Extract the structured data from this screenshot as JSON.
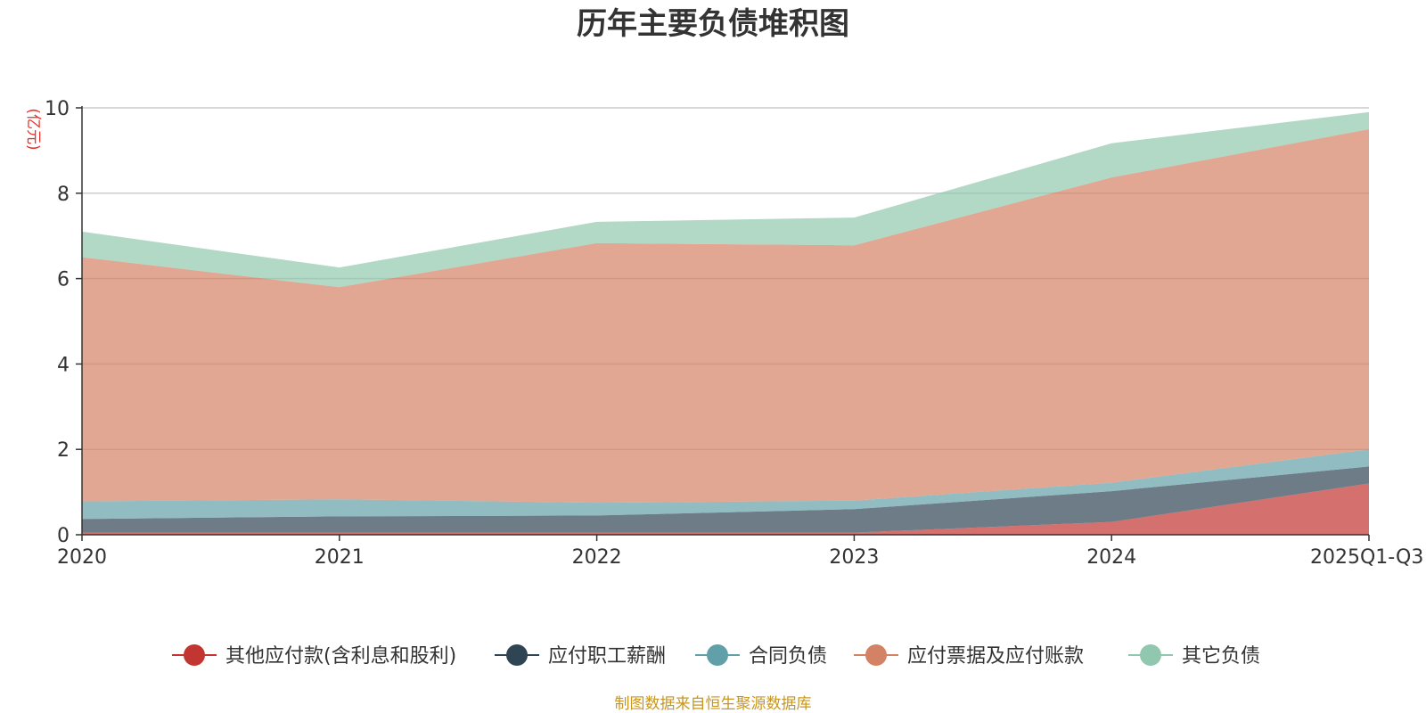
{
  "chart_data": {
    "type": "area",
    "stacked": true,
    "title": "历年主要负债堆积图",
    "unit_label": "(亿元)",
    "categories": [
      "2020",
      "2021",
      "2022",
      "2023",
      "2024",
      "2025Q1-Q3"
    ],
    "ylim": [
      0,
      10
    ],
    "yticks": [
      0,
      2,
      4,
      6,
      8,
      10
    ],
    "grid": true,
    "legend_position": "bottom",
    "series": [
      {
        "name": "其他应付款(含利息和股利)",
        "color": "#c23531",
        "values": [
          0.05,
          0.05,
          0.05,
          0.05,
          0.3,
          1.2
        ]
      },
      {
        "name": "应付职工薪酬",
        "color": "#2f4554",
        "values": [
          0.32,
          0.38,
          0.4,
          0.55,
          0.72,
          0.4
        ]
      },
      {
        "name": "合同负债",
        "color": "#61a0a8",
        "values": [
          0.41,
          0.4,
          0.3,
          0.2,
          0.2,
          0.4
        ]
      },
      {
        "name": "应付票据及应付账款",
        "color": "#d48265",
        "values": [
          5.72,
          4.97,
          6.08,
          5.98,
          7.15,
          7.5
        ]
      },
      {
        "name": "其它负债",
        "color": "#91c7ae",
        "values": [
          0.6,
          0.46,
          0.5,
          0.65,
          0.8,
          0.4
        ]
      }
    ],
    "source_note": "制图数据来自恒生聚源数据库"
  }
}
